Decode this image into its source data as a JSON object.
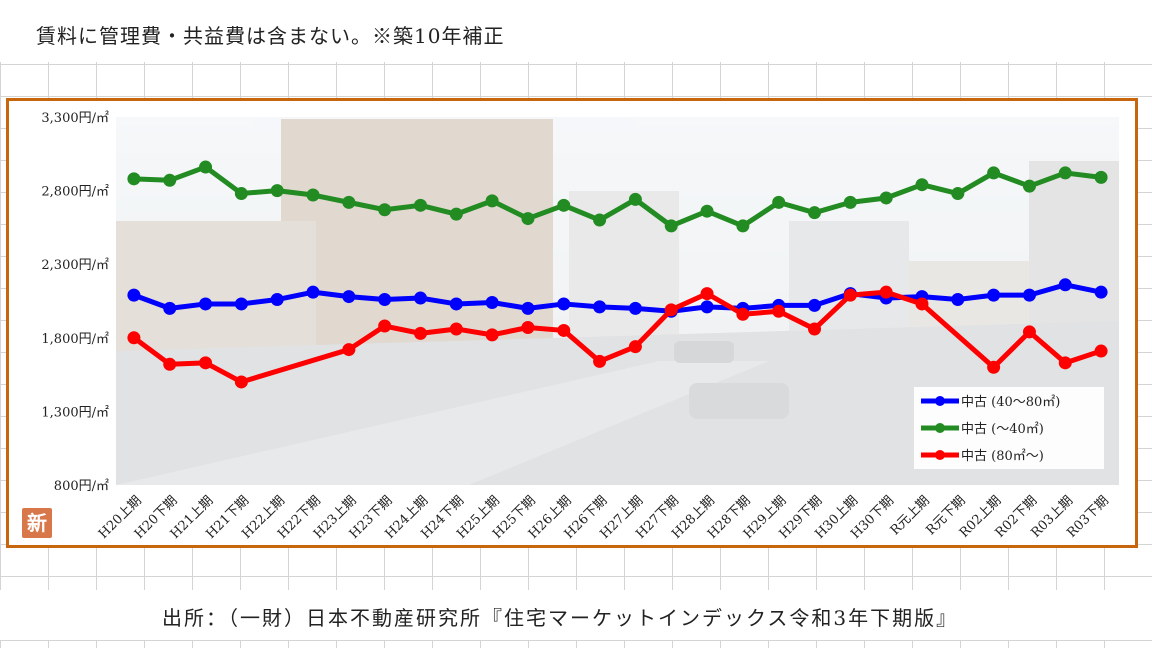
{
  "header": {
    "note": "賃料に管理費・共益費は含まない。※築10年補正"
  },
  "footer": {
    "source": "出所：（一財）日本不動産研究所『住宅マーケットインデックス令和3年下期版』"
  },
  "badge": {
    "label": "新"
  },
  "chart_data": {
    "type": "line",
    "title": "",
    "xlabel": "",
    "ylabel": "",
    "ylim": [
      800,
      3300
    ],
    "y_ticks": [
      800,
      1300,
      1800,
      2300,
      2800,
      3300
    ],
    "y_tick_labels": [
      "800円/㎡",
      "1,300円/㎡",
      "1,800円/㎡",
      "2,300円/㎡",
      "2,800円/㎡",
      "3,300円/㎡"
    ],
    "grid": false,
    "legend_position": "bottom-right",
    "categories": [
      "H20上期",
      "H20下期",
      "H21上期",
      "H21下期",
      "H22上期",
      "H22下期",
      "H23上期",
      "H23下期",
      "H24上期",
      "H24下期",
      "H25上期",
      "H25下期",
      "H26上期",
      "H26下期",
      "H27上期",
      "H27下期",
      "H28上期",
      "H28下期",
      "H29上期",
      "H29下期",
      "H30上期",
      "H30下期",
      "R元上期",
      "R元下期",
      "R02上期",
      "R02下期",
      "R03上期",
      "R03下期"
    ],
    "series": [
      {
        "name": "中古 (40～80㎡)",
        "color": "#0000ff",
        "values": [
          2090,
          2000,
          2030,
          2030,
          2060,
          2110,
          2080,
          2060,
          2070,
          2030,
          2040,
          2000,
          2030,
          2010,
          2000,
          1980,
          2010,
          2000,
          2020,
          2020,
          2100,
          2070,
          2080,
          2060,
          2090,
          2090,
          2160,
          2110
        ]
      },
      {
        "name": "中古 (～40㎡)",
        "color": "#228b22",
        "values": [
          2880,
          2870,
          2960,
          2780,
          2800,
          2770,
          2720,
          2670,
          2700,
          2640,
          2730,
          2610,
          2700,
          2600,
          2740,
          2560,
          2660,
          2560,
          2720,
          2650,
          2720,
          2750,
          2840,
          2780,
          2920,
          2830,
          2920,
          2890
        ]
      },
      {
        "name": "中古 (80㎡～)",
        "color": "#ff0000",
        "values": [
          1800,
          1620,
          1630,
          1500,
          null,
          null,
          1720,
          1880,
          1830,
          1860,
          1820,
          1870,
          1850,
          1640,
          1740,
          1990,
          2100,
          1960,
          1980,
          1860,
          2090,
          2110,
          2030,
          null,
          1600,
          1840,
          1630,
          1710
        ]
      }
    ]
  }
}
